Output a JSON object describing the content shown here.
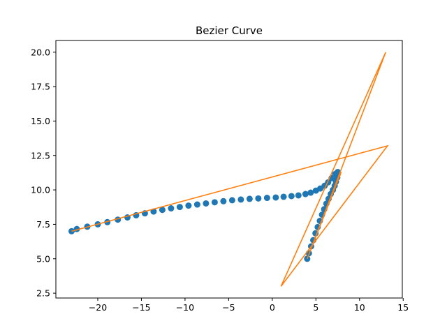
{
  "chart_data": {
    "type": "scatter",
    "title": "Bezier Curve",
    "xlabel": "",
    "ylabel": "",
    "xlim": [
      -24.8,
      14.9
    ],
    "ylim": [
      2.15,
      20.85
    ],
    "grid": false,
    "legend": "none",
    "x_ticks": [
      -20,
      -15,
      -10,
      -5,
      0,
      5,
      10,
      15
    ],
    "x_tick_labels": [
      "−20",
      "−15",
      "−10",
      "−5",
      "0",
      "5",
      "10",
      "15"
    ],
    "y_ticks": [
      2.5,
      5.0,
      7.5,
      10.0,
      12.5,
      15.0,
      17.5,
      20.0
    ],
    "y_tick_labels": [
      "2.5",
      "5.0",
      "7.5",
      "10.0",
      "12.5",
      "15.0",
      "17.5",
      "20.0"
    ],
    "series": [
      {
        "kind": "scatter",
        "color": "#1f77b4",
        "points": [
          [
            4.0,
            5.0
          ],
          [
            4.2,
            5.4
          ],
          [
            4.45,
            5.9
          ],
          [
            4.7,
            6.35
          ],
          [
            4.95,
            6.85
          ],
          [
            5.2,
            7.3
          ],
          [
            5.45,
            7.75
          ],
          [
            5.7,
            8.2
          ],
          [
            5.95,
            8.6
          ],
          [
            6.2,
            9.0
          ],
          [
            6.45,
            9.35
          ],
          [
            6.7,
            9.7
          ],
          [
            6.95,
            10.0
          ],
          [
            7.15,
            10.3
          ],
          [
            7.3,
            10.6
          ],
          [
            7.45,
            10.9
          ],
          [
            7.5,
            11.15
          ],
          [
            7.5,
            11.3
          ],
          [
            7.2,
            11.15
          ],
          [
            6.8,
            10.85
          ],
          [
            6.4,
            10.55
          ],
          [
            6.0,
            10.3
          ],
          [
            5.5,
            10.1
          ],
          [
            5.0,
            9.95
          ],
          [
            4.4,
            9.8
          ],
          [
            3.8,
            9.7
          ],
          [
            3.0,
            9.6
          ],
          [
            2.2,
            9.55
          ],
          [
            1.3,
            9.5
          ],
          [
            0.4,
            9.45
          ],
          [
            -0.6,
            9.42
          ],
          [
            -1.6,
            9.38
          ],
          [
            -2.6,
            9.35
          ],
          [
            -3.6,
            9.3
          ],
          [
            -4.6,
            9.25
          ],
          [
            -5.6,
            9.18
          ],
          [
            -6.6,
            9.1
          ],
          [
            -7.6,
            9.02
          ],
          [
            -8.6,
            8.94
          ],
          [
            -9.6,
            8.86
          ],
          [
            -10.6,
            8.76
          ],
          [
            -11.6,
            8.66
          ],
          [
            -12.6,
            8.55
          ],
          [
            -13.6,
            8.43
          ],
          [
            -14.6,
            8.3
          ],
          [
            -15.6,
            8.16
          ],
          [
            -16.6,
            8.0
          ],
          [
            -17.7,
            7.84
          ],
          [
            -18.9,
            7.66
          ],
          [
            -20.0,
            7.5
          ],
          [
            -21.2,
            7.33
          ],
          [
            -22.4,
            7.16
          ],
          [
            -23.0,
            7.0
          ]
        ]
      },
      {
        "kind": "line",
        "color": "#ff7f0e",
        "points": [
          [
            -23.0,
            7.0
          ],
          [
            13.2,
            13.2
          ],
          [
            1.0,
            3.0
          ],
          [
            13.0,
            20.0
          ],
          [
            4.0,
            5.0
          ],
          [
            7.9,
            11.3
          ]
        ]
      }
    ]
  }
}
